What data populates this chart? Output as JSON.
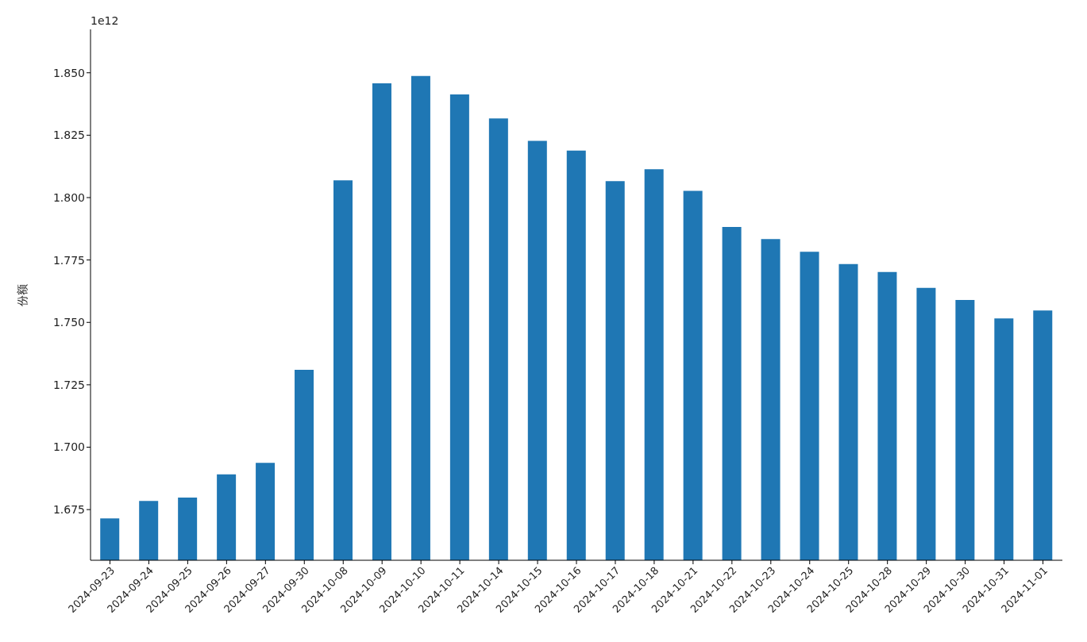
{
  "chart_data": {
    "type": "bar",
    "ylabel": "份额",
    "annotations": [
      "1e12"
    ],
    "categories": [
      "2024-09-23",
      "2024-09-24",
      "2024-09-25",
      "2024-09-26",
      "2024-09-27",
      "2024-09-30",
      "2024-10-08",
      "2024-10-09",
      "2024-10-10",
      "2024-10-11",
      "2024-10-14",
      "2024-10-15",
      "2024-10-16",
      "2024-10-17",
      "2024-10-18",
      "2024-10-21",
      "2024-10-22",
      "2024-10-23",
      "2024-10-24",
      "2024-10-25",
      "2024-10-28",
      "2024-10-29",
      "2024-10-30",
      "2024-10-31",
      "2024-11-01"
    ],
    "values": [
      1.6715,
      1.6785,
      1.6798,
      1.6891,
      1.6937,
      1.731,
      1.8069,
      1.8458,
      1.8487,
      1.8413,
      1.8317,
      1.8227,
      1.8188,
      1.8066,
      1.8114,
      1.8027,
      1.7882,
      1.7834,
      1.7783,
      1.7734,
      1.7702,
      1.7638,
      1.759,
      1.7516,
      1.7548
    ],
    "color": "#1f77b4",
    "ylim": [
      1.6547,
      1.8674
    ],
    "yticks": [
      1.675,
      {
        "value": 1.7,
        "label": "1.700"
      },
      1.725,
      {
        "value": 1.75,
        "label": "1.750"
      },
      1.775,
      {
        "value": 1.8,
        "label": "1.800"
      },
      1.825,
      {
        "value": 1.85,
        "label": "1.850"
      }
    ],
    "grid": false,
    "legend": false
  }
}
